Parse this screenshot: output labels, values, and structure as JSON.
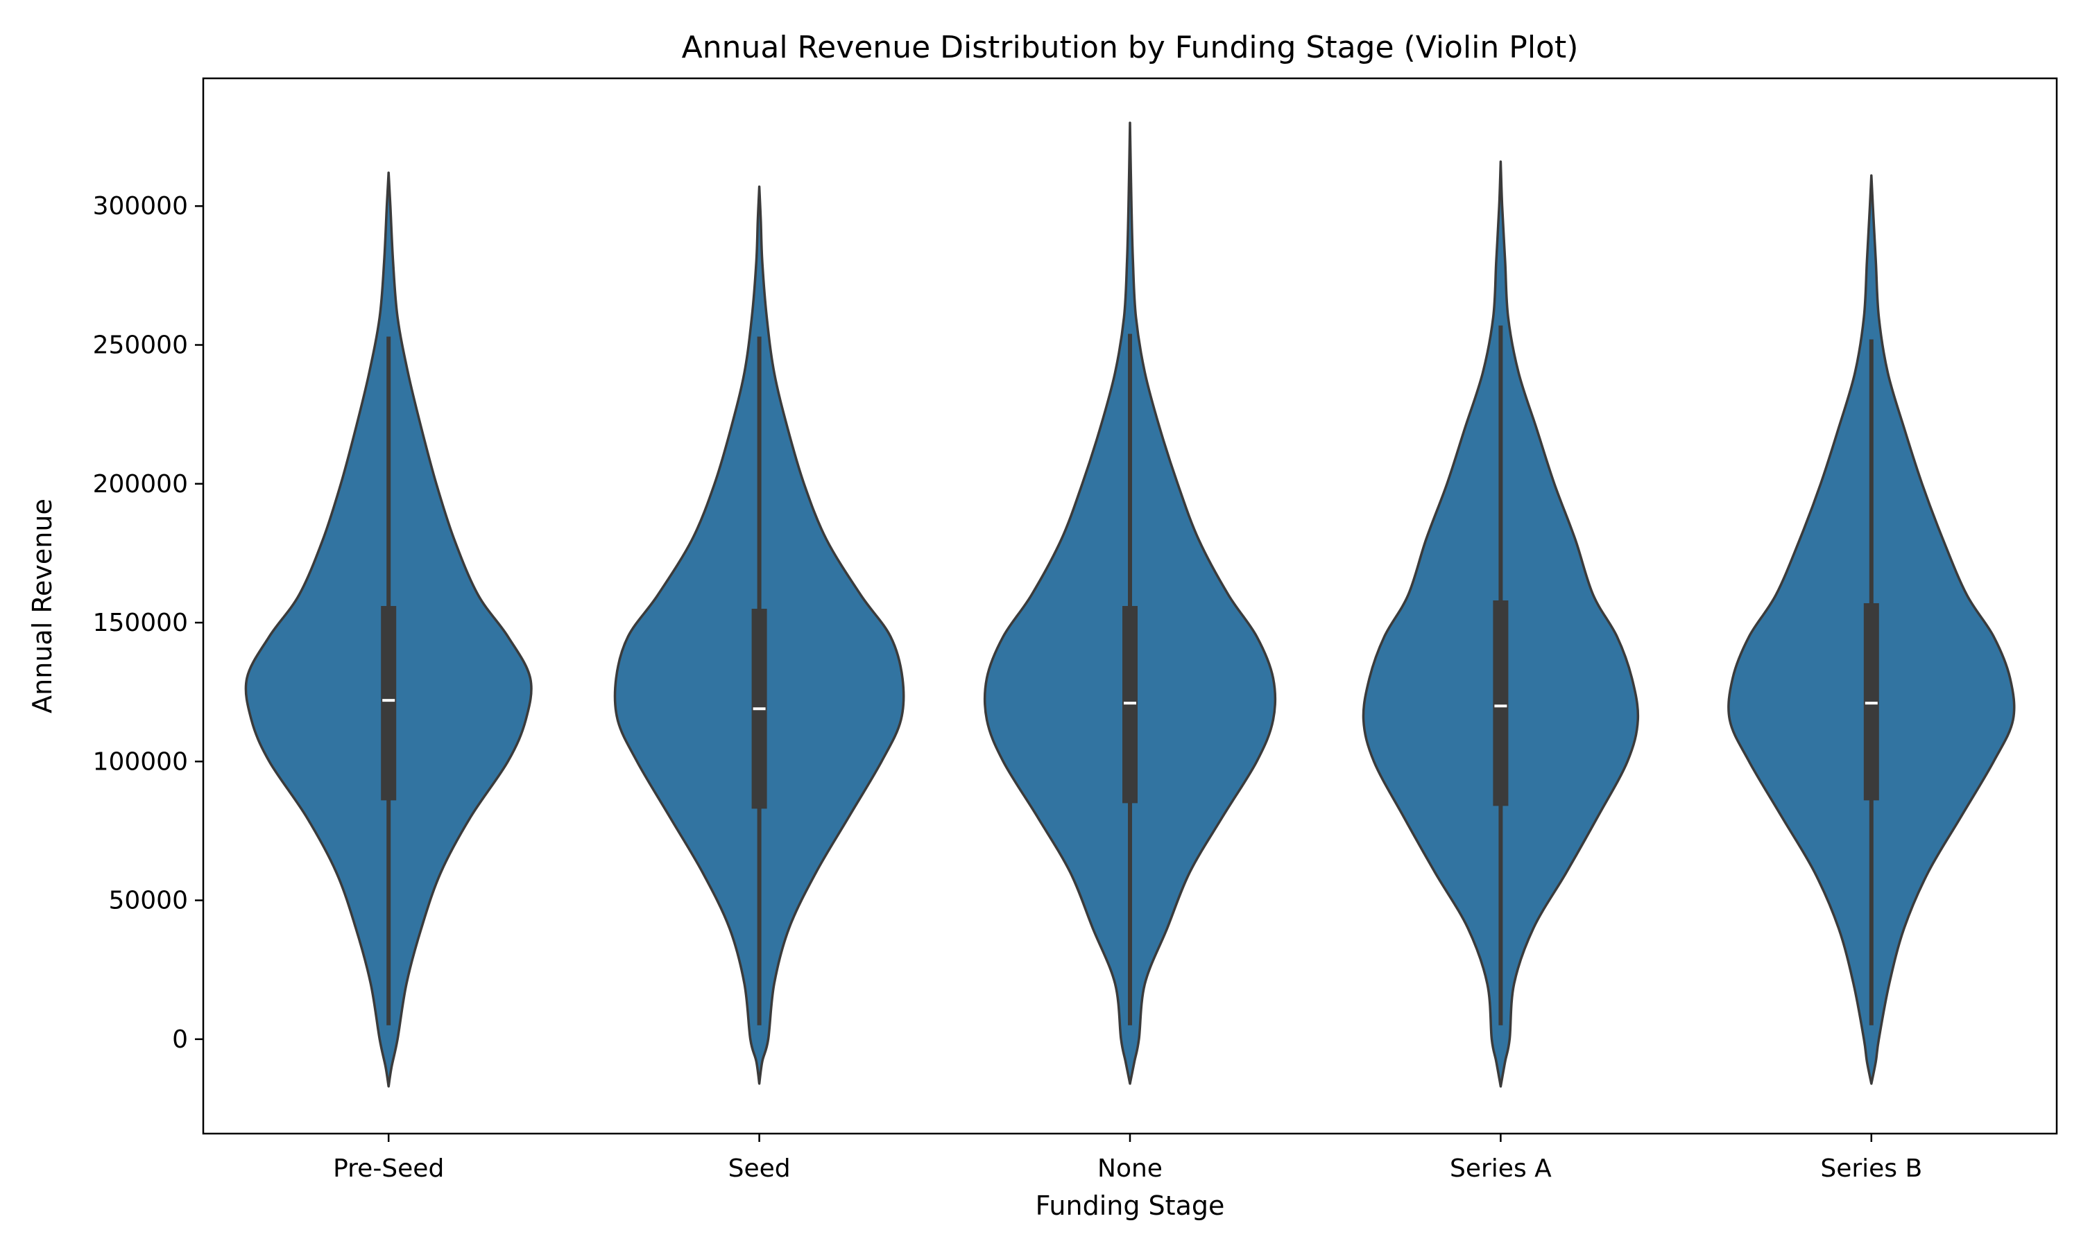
{
  "chart_data": {
    "type": "violin",
    "title": "Annual Revenue Distribution by Funding Stage (Violin Plot)",
    "xlabel": "Funding Stage",
    "ylabel": "Annual Revenue",
    "ylim": [
      -34000,
      346000
    ],
    "yticks": [
      0,
      50000,
      100000,
      150000,
      200000,
      250000,
      300000
    ],
    "ytick_labels": [
      "0",
      "50000",
      "100000",
      "150000",
      "200000",
      "250000",
      "300000"
    ],
    "categories": [
      "Pre-Seed",
      "Seed",
      "None",
      "Series A",
      "Series B"
    ],
    "grid": false,
    "legend": "none",
    "colors": {
      "fill": "#3274a1",
      "edge": "#3b3b3b",
      "box": "#3b3b3b",
      "median": "#ffffff"
    },
    "violins": [
      {
        "category": "Pre-Seed",
        "median": 122000,
        "q1": 86000,
        "q3": 156000,
        "whisker_low": 5000,
        "whisker_high": 253000,
        "profile": [
          [
            -17000,
            0
          ],
          [
            -10000,
            0.02
          ],
          [
            0,
            0.06
          ],
          [
            20000,
            0.12
          ],
          [
            40000,
            0.22
          ],
          [
            60000,
            0.35
          ],
          [
            80000,
            0.55
          ],
          [
            100000,
            0.8
          ],
          [
            115000,
            0.92
          ],
          [
            130000,
            0.95
          ],
          [
            145000,
            0.8
          ],
          [
            160000,
            0.6
          ],
          [
            180000,
            0.44
          ],
          [
            200000,
            0.32
          ],
          [
            220000,
            0.22
          ],
          [
            240000,
            0.13
          ],
          [
            260000,
            0.06
          ],
          [
            280000,
            0.03
          ],
          [
            300000,
            0.012
          ],
          [
            312000,
            0
          ]
        ]
      },
      {
        "category": "Seed",
        "median": 119000,
        "q1": 83000,
        "q3": 155000,
        "whisker_low": 5000,
        "whisker_high": 253000,
        "profile": [
          [
            -16000,
            0
          ],
          [
            -8000,
            0.02
          ],
          [
            0,
            0.06
          ],
          [
            20000,
            0.1
          ],
          [
            40000,
            0.2
          ],
          [
            60000,
            0.38
          ],
          [
            80000,
            0.6
          ],
          [
            100000,
            0.82
          ],
          [
            115000,
            0.95
          ],
          [
            130000,
            0.96
          ],
          [
            145000,
            0.88
          ],
          [
            160000,
            0.68
          ],
          [
            180000,
            0.45
          ],
          [
            200000,
            0.3
          ],
          [
            220000,
            0.19
          ],
          [
            240000,
            0.1
          ],
          [
            260000,
            0.05
          ],
          [
            280000,
            0.02
          ],
          [
            295000,
            0.01
          ],
          [
            307000,
            0
          ]
        ]
      },
      {
        "category": "None",
        "median": 121000,
        "q1": 85000,
        "q3": 156000,
        "whisker_low": 5000,
        "whisker_high": 254000,
        "profile": [
          [
            -16000,
            0
          ],
          [
            -8000,
            0.03
          ],
          [
            0,
            0.06
          ],
          [
            20000,
            0.1
          ],
          [
            40000,
            0.25
          ],
          [
            60000,
            0.4
          ],
          [
            80000,
            0.62
          ],
          [
            100000,
            0.85
          ],
          [
            115000,
            0.96
          ],
          [
            130000,
            0.96
          ],
          [
            145000,
            0.85
          ],
          [
            160000,
            0.66
          ],
          [
            180000,
            0.46
          ],
          [
            200000,
            0.32
          ],
          [
            220000,
            0.2
          ],
          [
            240000,
            0.1
          ],
          [
            260000,
            0.04
          ],
          [
            280000,
            0.02
          ],
          [
            300000,
            0.01
          ],
          [
            330000,
            0
          ]
        ]
      },
      {
        "category": "Series A",
        "median": 120000,
        "q1": 84000,
        "q3": 158000,
        "whisker_low": 5000,
        "whisker_high": 257000,
        "profile": [
          [
            -17000,
            0
          ],
          [
            -8000,
            0.03
          ],
          [
            0,
            0.06
          ],
          [
            20000,
            0.09
          ],
          [
            40000,
            0.22
          ],
          [
            60000,
            0.44
          ],
          [
            80000,
            0.65
          ],
          [
            100000,
            0.85
          ],
          [
            115000,
            0.92
          ],
          [
            130000,
            0.88
          ],
          [
            145000,
            0.78
          ],
          [
            160000,
            0.62
          ],
          [
            180000,
            0.5
          ],
          [
            200000,
            0.36
          ],
          [
            220000,
            0.24
          ],
          [
            240000,
            0.12
          ],
          [
            260000,
            0.05
          ],
          [
            280000,
            0.03
          ],
          [
            300000,
            0.01
          ],
          [
            316000,
            0
          ]
        ]
      },
      {
        "category": "Series B",
        "median": 121000,
        "q1": 86000,
        "q3": 157000,
        "whisker_low": 5000,
        "whisker_high": 252000,
        "profile": [
          [
            -16000,
            0
          ],
          [
            -8000,
            0.03
          ],
          [
            0,
            0.05
          ],
          [
            20000,
            0.12
          ],
          [
            40000,
            0.22
          ],
          [
            60000,
            0.38
          ],
          [
            80000,
            0.6
          ],
          [
            100000,
            0.82
          ],
          [
            115000,
            0.95
          ],
          [
            130000,
            0.93
          ],
          [
            145000,
            0.82
          ],
          [
            160000,
            0.64
          ],
          [
            180000,
            0.48
          ],
          [
            200000,
            0.34
          ],
          [
            220000,
            0.22
          ],
          [
            240000,
            0.11
          ],
          [
            260000,
            0.05
          ],
          [
            280000,
            0.03
          ],
          [
            300000,
            0.01
          ],
          [
            311000,
            0
          ]
        ]
      }
    ]
  }
}
